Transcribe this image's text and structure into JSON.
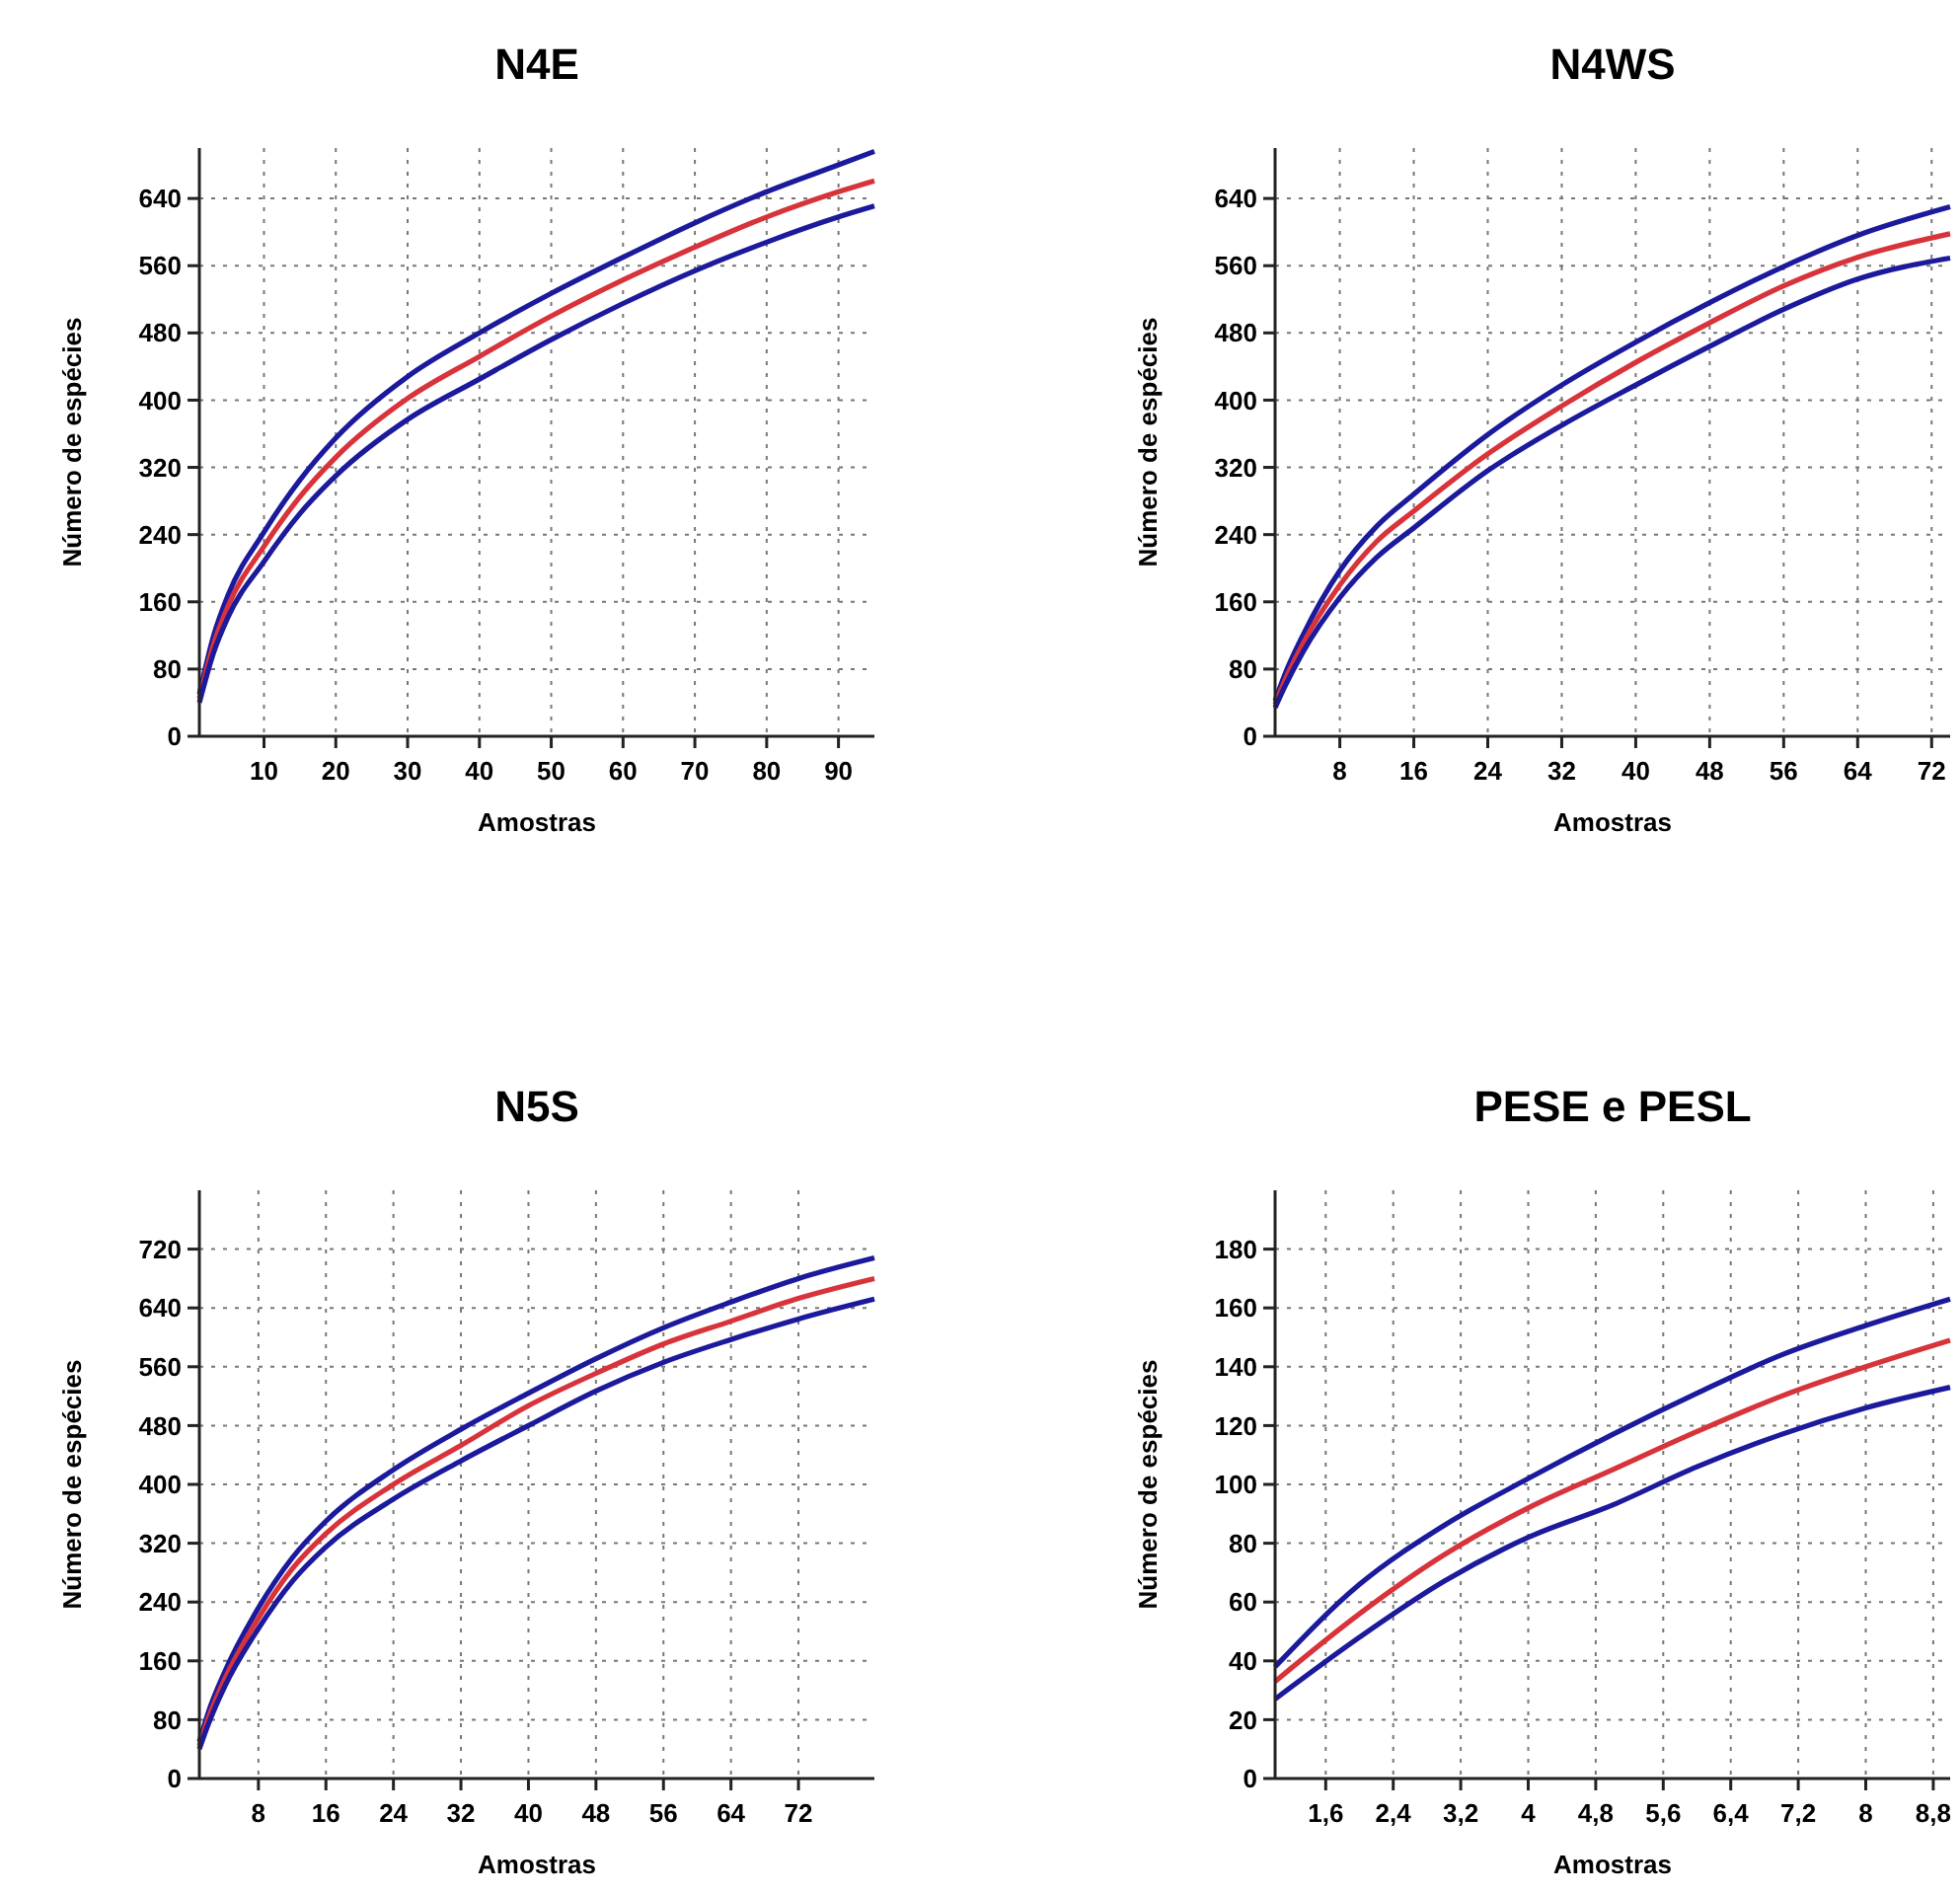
{
  "chart_data": [
    {
      "type": "line",
      "title": "N4E",
      "xlabel": "Amostras",
      "ylabel": "Número de espécies",
      "xlim": [
        1,
        95
      ],
      "ylim": [
        0,
        700
      ],
      "xticks": [
        10,
        20,
        30,
        40,
        50,
        60,
        70,
        80,
        90
      ],
      "yticks": [
        0,
        80,
        160,
        240,
        320,
        400,
        480,
        560,
        640
      ],
      "grid": true,
      "line_style": "solid",
      "marker": "none",
      "x": [
        1,
        3,
        5,
        10,
        15,
        20,
        30,
        40,
        50,
        60,
        70,
        80,
        90,
        95
      ],
      "series": [
        {
          "color": "#1c1a9c",
          "values": [
            50,
            120,
            168,
            243,
            305,
            355,
            428,
            480,
            527,
            570,
            611,
            648,
            680,
            696
          ]
        },
        {
          "color": "#d8333a",
          "values": [
            45,
            110,
            155,
            226,
            285,
            332,
            402,
            452,
            500,
            543,
            582,
            618,
            648,
            661
          ]
        },
        {
          "color": "#1c1a9c",
          "values": [
            40,
            100,
            142,
            208,
            265,
            310,
            377,
            425,
            472,
            515,
            554,
            588,
            618,
            631
          ]
        }
      ]
    },
    {
      "type": "line",
      "title": "N4WS",
      "xlabel": "Amostras",
      "ylabel": "Número de espécies",
      "xlim": [
        1,
        74
      ],
      "ylim": [
        0,
        700
      ],
      "xticks": [
        8,
        16,
        24,
        32,
        40,
        48,
        56,
        64,
        72
      ],
      "yticks": [
        0,
        80,
        160,
        240,
        320,
        400,
        480,
        560,
        640
      ],
      "grid": true,
      "line_style": "solid",
      "marker": "none",
      "x": [
        1,
        2,
        4,
        8,
        12,
        16,
        24,
        32,
        40,
        48,
        56,
        64,
        74
      ],
      "series": [
        {
          "color": "#1c1a9c",
          "values": [
            42,
            72,
            120,
            197,
            250,
            288,
            359,
            418,
            469,
            516,
            559,
            596,
            630
          ]
        },
        {
          "color": "#d8333a",
          "values": [
            38,
            65,
            110,
            180,
            232,
            268,
            336,
            393,
            445,
            492,
            536,
            570,
            598
          ]
        },
        {
          "color": "#1c1a9c",
          "values": [
            34,
            58,
            100,
            165,
            213,
            248,
            316,
            370,
            418,
            464,
            508,
            544,
            569
          ]
        }
      ]
    },
    {
      "type": "line",
      "title": "N5S",
      "xlabel": "Amostras",
      "ylabel": "Número de espécies",
      "xlim": [
        1,
        81
      ],
      "ylim": [
        0,
        800
      ],
      "xticks": [
        8,
        16,
        24,
        32,
        40,
        48,
        56,
        64,
        72
      ],
      "yticks": [
        0,
        80,
        160,
        240,
        320,
        400,
        480,
        560,
        640,
        720
      ],
      "grid": true,
      "line_style": "solid",
      "marker": "none",
      "x": [
        1,
        2,
        4,
        8,
        12,
        16,
        24,
        32,
        40,
        48,
        56,
        64,
        72,
        81
      ],
      "series": [
        {
          "color": "#1c1a9c",
          "values": [
            50,
            88,
            145,
            232,
            300,
            350,
            420,
            475,
            524,
            571,
            613,
            648,
            680,
            708
          ]
        },
        {
          "color": "#d8333a",
          "values": [
            45,
            80,
            135,
            218,
            285,
            333,
            400,
            453,
            507,
            551,
            591,
            622,
            653,
            680
          ]
        },
        {
          "color": "#1c1a9c",
          "values": [
            40,
            72,
            125,
            204,
            268,
            315,
            380,
            432,
            480,
            527,
            566,
            597,
            625,
            652
          ]
        }
      ]
    },
    {
      "type": "line",
      "title": "PESE e PESL",
      "xlabel": "Amostras",
      "ylabel": "Número de espécies",
      "xlim": [
        1,
        9
      ],
      "ylim": [
        0,
        200
      ],
      "xticks": [
        {
          "value": 1.6,
          "label": "1,6"
        },
        {
          "value": 2.4,
          "label": "2,4"
        },
        {
          "value": 3.2,
          "label": "3,2"
        },
        4,
        {
          "value": 4.8,
          "label": "4,8"
        },
        {
          "value": 5.6,
          "label": "5,6"
        },
        {
          "value": 6.4,
          "label": "6,4"
        },
        {
          "value": 7.2,
          "label": "7,2"
        },
        8,
        {
          "value": 8.8,
          "label": "8,8"
        }
      ],
      "yticks": [
        0,
        20,
        40,
        60,
        80,
        100,
        120,
        140,
        160,
        180
      ],
      "grid": true,
      "line_style": "solid",
      "marker": "none",
      "x": [
        1,
        2,
        3,
        4,
        5,
        6,
        7,
        8,
        9
      ],
      "series": [
        {
          "color": "#1c1a9c",
          "values": [
            38,
            66,
            86,
            102,
            117,
            131,
            144,
            154,
            163
          ]
        },
        {
          "color": "#d8333a",
          "values": [
            33,
            56,
            76,
            92,
            105,
            118,
            130,
            140,
            149
          ]
        },
        {
          "color": "#1c1a9c",
          "values": [
            27,
            48,
            67,
            82,
            93,
            106,
            117,
            126,
            133
          ]
        }
      ]
    }
  ]
}
